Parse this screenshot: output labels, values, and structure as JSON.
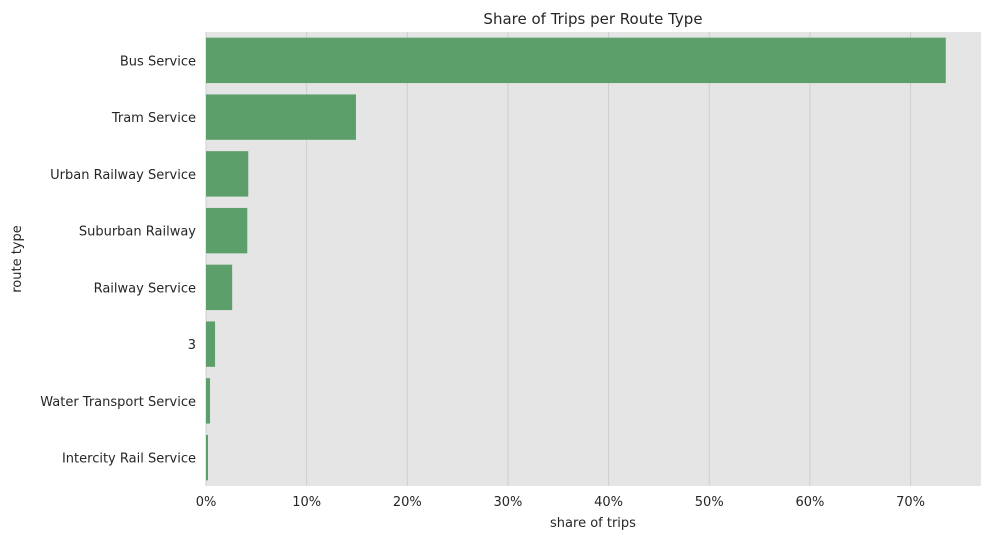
{
  "chart_data": {
    "type": "bar",
    "orientation": "horizontal",
    "title": "Share of Trips per Route Type",
    "xlabel": "share of trips",
    "ylabel": "route type",
    "categories": [
      "Bus Service",
      "Tram Service",
      "Urban Railway Service",
      "Suburban Railway",
      "Railway Service",
      "3",
      "Water Transport Service",
      "Intercity Rail Service"
    ],
    "values": [
      0.735,
      0.149,
      0.042,
      0.041,
      0.026,
      0.009,
      0.004,
      0.002
    ],
    "xlim": [
      0,
      0.77
    ],
    "xticks": [
      0,
      0.1,
      0.2,
      0.3,
      0.4,
      0.5,
      0.6,
      0.7
    ],
    "xtick_labels": [
      "0%",
      "10%",
      "20%",
      "30%",
      "40%",
      "50%",
      "60%",
      "70%"
    ],
    "grid": "vertical",
    "colors": {
      "bar": "#5c9f6b",
      "background": "#e5e5e5",
      "grid": "#cfcfcf"
    }
  }
}
